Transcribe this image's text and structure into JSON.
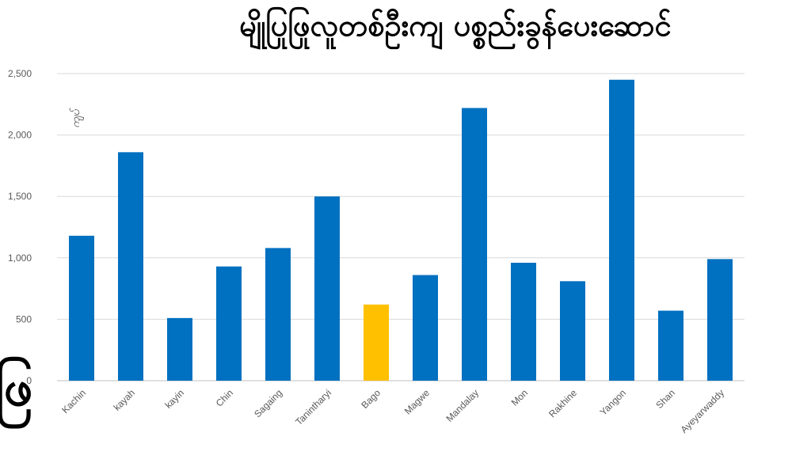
{
  "chart_data": {
    "type": "bar",
    "title": "မျိုပြုဖြုလူတစ်ဦးကျ ပစ္စည်းခွန်ပေးဆောင်",
    "ylabel": "ကျပ်",
    "xlabel": "",
    "ylim": [
      0,
      2500
    ],
    "yticks": [
      0,
      500,
      1000,
      1500,
      2000,
      2500
    ],
    "ytick_labels": [
      "0",
      "500",
      "1,000",
      "1,500",
      "2,000",
      "2,500"
    ],
    "grid": true,
    "categories": [
      "Kachin",
      "kayah",
      "kayin",
      "Chin",
      "Sagaing",
      "Tanintharyi",
      "Bago",
      "Magwe",
      "Mandalay",
      "Mon",
      "Rakhine",
      "Yangon",
      "Shan",
      "Ayeyarwaddy"
    ],
    "values": [
      1180,
      1860,
      510,
      930,
      1080,
      1500,
      620,
      860,
      2220,
      960,
      810,
      2450,
      570,
      990
    ],
    "colors": {
      "default": "#0070C0",
      "highlight": "#FFC000",
      "grid": "#D9D9D9",
      "axis": "#BFBFBF"
    },
    "highlight_index": 6
  },
  "side_glyph": "ဖြ"
}
